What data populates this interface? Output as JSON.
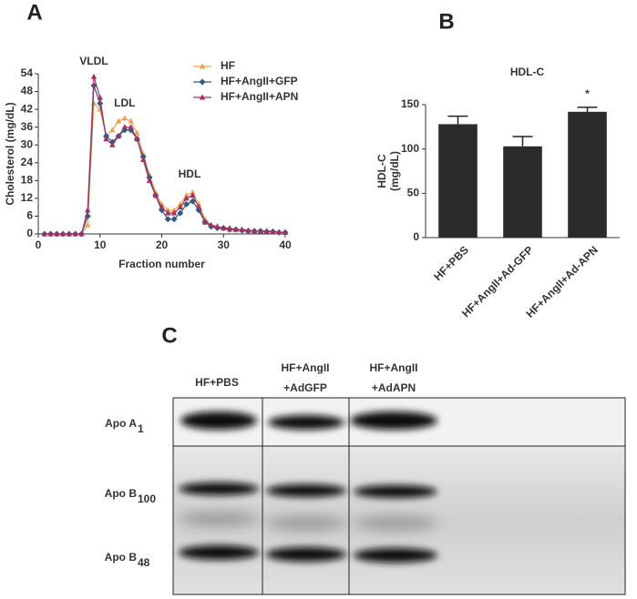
{
  "chart_data": [
    {
      "type": "line",
      "panel": "A",
      "y_label": "Cholesterol (mg/dL)",
      "x_label": "Fraction number",
      "x": [
        1,
        2,
        3,
        4,
        5,
        6,
        7,
        8,
        9,
        10,
        11,
        12,
        13,
        14,
        15,
        16,
        17,
        18,
        19,
        20,
        21,
        22,
        23,
        24,
        25,
        26,
        27,
        28,
        29,
        30,
        31,
        32,
        33,
        34,
        35,
        36,
        37,
        38,
        39,
        40
      ],
      "series": [
        {
          "name": "HF",
          "color": "#f0a050",
          "marker": "triangle",
          "values": [
            0,
            0,
            0,
            0,
            0,
            0,
            0,
            3,
            44,
            42,
            33,
            35,
            38,
            39,
            38,
            34,
            27,
            20,
            14,
            10,
            8,
            8,
            10,
            13,
            14,
            10,
            5,
            3,
            2.5,
            2,
            1.5,
            1.5,
            1.5,
            1.2,
            1,
            1,
            1,
            0.8,
            0.6,
            0.5
          ]
        },
        {
          "name": "HF+AngII+GFP",
          "color": "#2e5e7e",
          "marker": "diamond",
          "values": [
            0,
            0,
            0,
            0,
            0,
            0,
            0,
            6,
            50,
            44,
            33,
            31,
            33,
            35,
            35,
            32,
            26,
            19,
            13,
            8,
            5,
            5,
            7,
            10,
            11,
            8,
            4,
            2.5,
            2,
            2,
            1.5,
            1.5,
            1.2,
            1,
            1,
            1,
            0.8,
            0.8,
            0.5,
            0.5
          ]
        },
        {
          "name": "HF+AngII+APN",
          "color": "#a0306a",
          "marker": "triangle",
          "values": [
            0,
            0,
            0,
            0,
            0,
            0,
            0,
            8,
            53,
            46,
            32,
            30,
            33,
            36,
            36,
            32,
            25,
            18,
            13,
            9,
            7,
            7,
            9,
            12,
            13,
            9,
            4,
            3,
            2.5,
            2,
            2,
            1.5,
            1.5,
            1.2,
            1,
            1,
            1,
            0.8,
            0.6,
            0.5
          ]
        }
      ],
      "annotations": [
        {
          "text": "VLDL",
          "x": 9,
          "y": 58
        },
        {
          "text": "LDL",
          "x": 14,
          "y": 44
        },
        {
          "text": "HDL",
          "x": 24.5,
          "y": 20
        }
      ],
      "xlim": [
        0,
        40
      ],
      "xticks": [
        0,
        10,
        20,
        30,
        40
      ],
      "ylim": [
        0,
        54
      ],
      "yticks": [
        0,
        6,
        12,
        18,
        24,
        30,
        36,
        42,
        48,
        54
      ],
      "legend": "top-right"
    },
    {
      "type": "bar",
      "panel": "B",
      "title": "HDL-C",
      "y_label": [
        "HDL-C",
        "(mg/dL)"
      ],
      "categories": [
        "HF+PBS",
        "HF+AngII+Ad-GFP",
        "HF+AngII+Ad-APN"
      ],
      "values": [
        128,
        103,
        142
      ],
      "errors": [
        9,
        11,
        5
      ],
      "significance": [
        null,
        null,
        "*"
      ],
      "color": "#2b2b2b",
      "ylim": [
        0,
        150
      ],
      "yticks": [
        0,
        50,
        100,
        150
      ]
    }
  ],
  "blot": {
    "panel": "C",
    "columns": [
      [
        "HF+PBS"
      ],
      [
        "HF+AngII",
        "+AdGFP"
      ],
      [
        "HF+AngII",
        "+AdAPN"
      ]
    ],
    "rows": [
      {
        "text": "Apo A",
        "sub": "1"
      },
      {
        "text": "Apo B",
        "sub": "100"
      },
      {
        "text": "Apo B",
        "sub": "48"
      }
    ]
  }
}
